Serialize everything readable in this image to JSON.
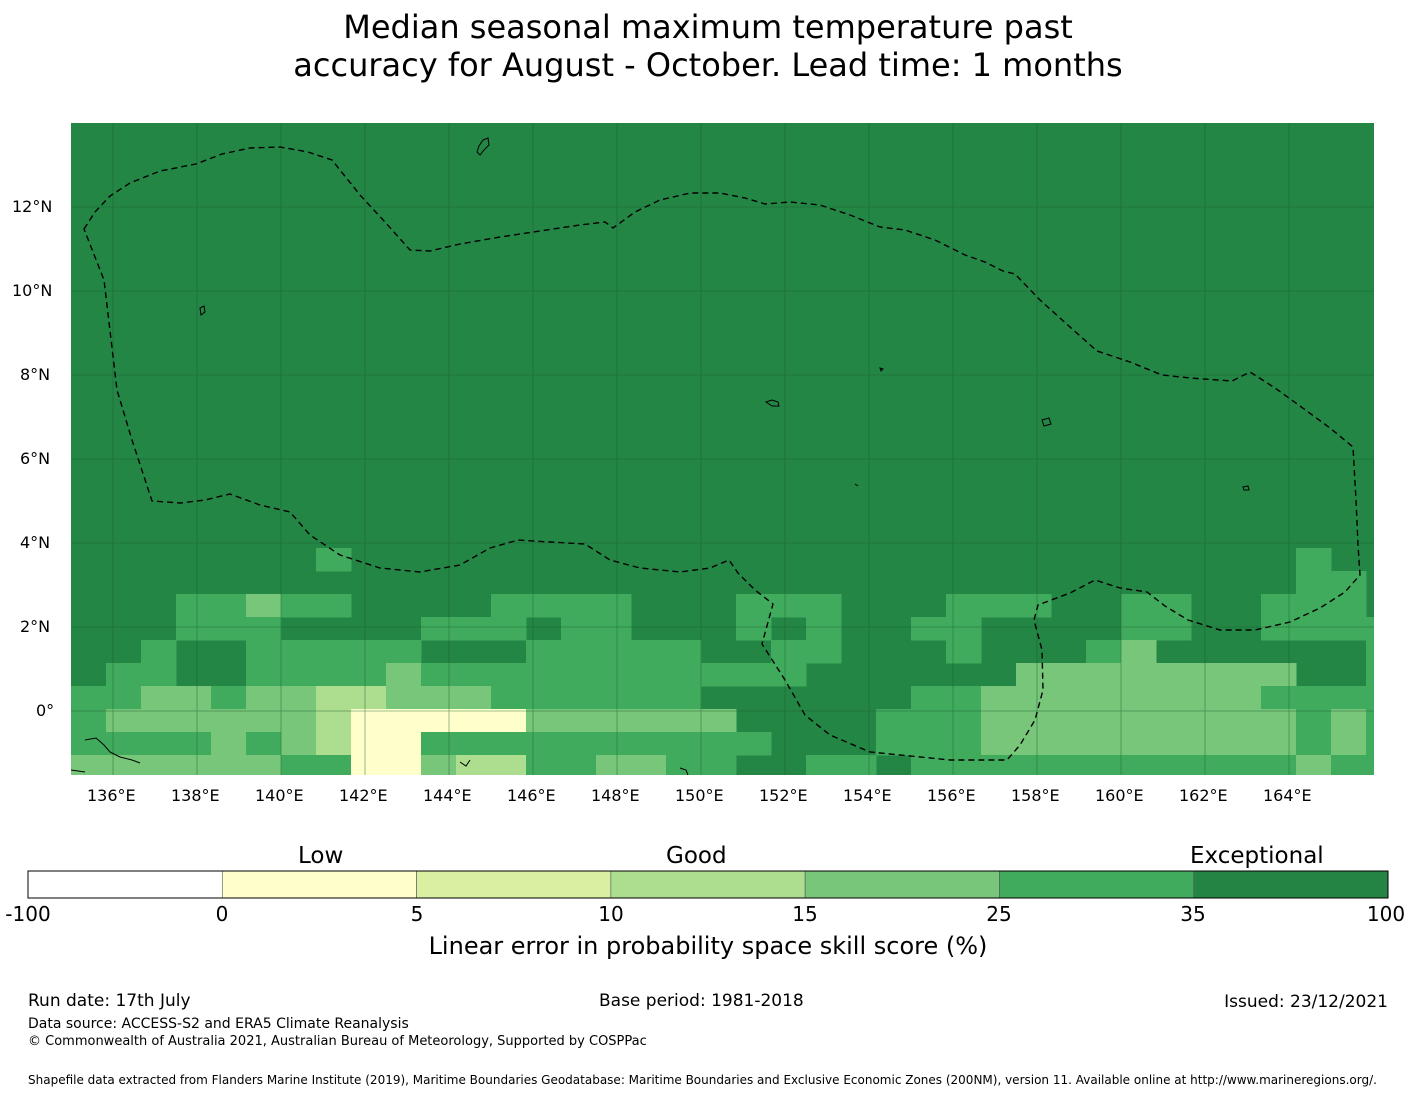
{
  "title": {
    "line1": "Median seasonal maximum temperature past",
    "line2": "accuracy for August - October. Lead time: 1 months"
  },
  "map": {
    "lon_labels": [
      "136°E",
      "138°E",
      "140°E",
      "142°E",
      "144°E",
      "146°E",
      "148°E",
      "150°E",
      "152°E",
      "154°E",
      "156°E",
      "158°E",
      "160°E",
      "162°E",
      "164°E"
    ],
    "lat_labels": [
      "12°N",
      "10°N",
      "8°N",
      "6°N",
      "4°N",
      "2°N",
      "0°"
    ],
    "background_color": "#248645"
  },
  "colorbar": {
    "categories": [
      "Low",
      "Good",
      "Exceptional"
    ],
    "ticks": [
      "-100",
      "0",
      "5",
      "10",
      "15",
      "25",
      "35",
      "100"
    ],
    "colors": [
      "#ffffff",
      "#ffffcc",
      "#d9f0a3",
      "#addd8e",
      "#78c679",
      "#41ab5d",
      "#238443"
    ],
    "label": "Linear error in probability space skill score (%)"
  },
  "footer": {
    "run_date": "Run date: 17th July",
    "base_period": "Base period: 1981-2018",
    "issued": "Issued: 23/12/2021",
    "data_source": "Data source: ACCESS-S2 and ERA5 Climate Reanalysis",
    "copyright": "© Commonwealth of Australia 2021, Australian Bureau of Meteorology, Supported by COSPPac",
    "shapefile": "Shapefile data extracted from Flanders Marine Institute (2019), Maritime Boundaries Geodatabase: Maritime Boundaries and Exclusive Economic Zones (200NM), version 11. Available online at http://www.marineregions.org/."
  }
}
